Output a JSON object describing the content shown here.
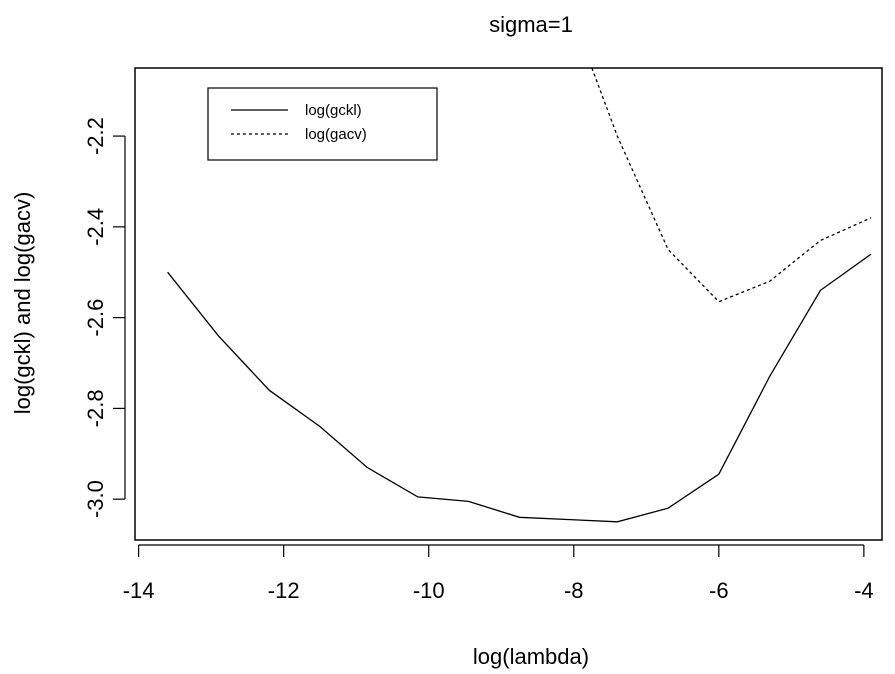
{
  "chart_data": {
    "type": "line",
    "title": "sigma=1",
    "xlabel": "log(lambda)",
    "ylabel": "log(gckl)  and  log(gacv)",
    "xlim": [
      -14.05,
      -3.75
    ],
    "ylim": [
      -3.09,
      -2.05
    ],
    "xticks": [
      -14,
      -12,
      -10,
      -8,
      -6,
      -4
    ],
    "yticks": [
      -3.0,
      -2.8,
      -2.6,
      -2.4,
      -2.2
    ],
    "xtick_labels": [
      "-14",
      "-12",
      "-10",
      "-8",
      "-6",
      "-4"
    ],
    "ytick_labels": [
      "-3.0",
      "-2.8",
      "-2.6",
      "-2.4",
      "-2.2"
    ],
    "grid": false,
    "legend_position": "top-left",
    "series": [
      {
        "name": "log(gckl)",
        "style": "solid",
        "x": [
          -13.6,
          -12.9,
          -12.2,
          -11.5,
          -10.85,
          -10.15,
          -9.45,
          -8.75,
          -8.05,
          -7.4,
          -6.7,
          -6.0,
          -5.3,
          -4.6,
          -3.9
        ],
        "y": [
          -2.5,
          -2.64,
          -2.76,
          -2.84,
          -2.93,
          -2.995,
          -3.005,
          -3.04,
          -3.045,
          -3.05,
          -3.02,
          -2.945,
          -2.73,
          -2.54,
          -2.46
        ]
      },
      {
        "name": "log(gacv)",
        "style": "dashed",
        "x": [
          -7.75,
          -7.4,
          -6.7,
          -6.0,
          -5.3,
          -4.6,
          -3.9
        ],
        "y": [
          -2.05,
          -2.2,
          -2.45,
          -2.565,
          -2.52,
          -2.43,
          -2.38
        ]
      }
    ]
  }
}
